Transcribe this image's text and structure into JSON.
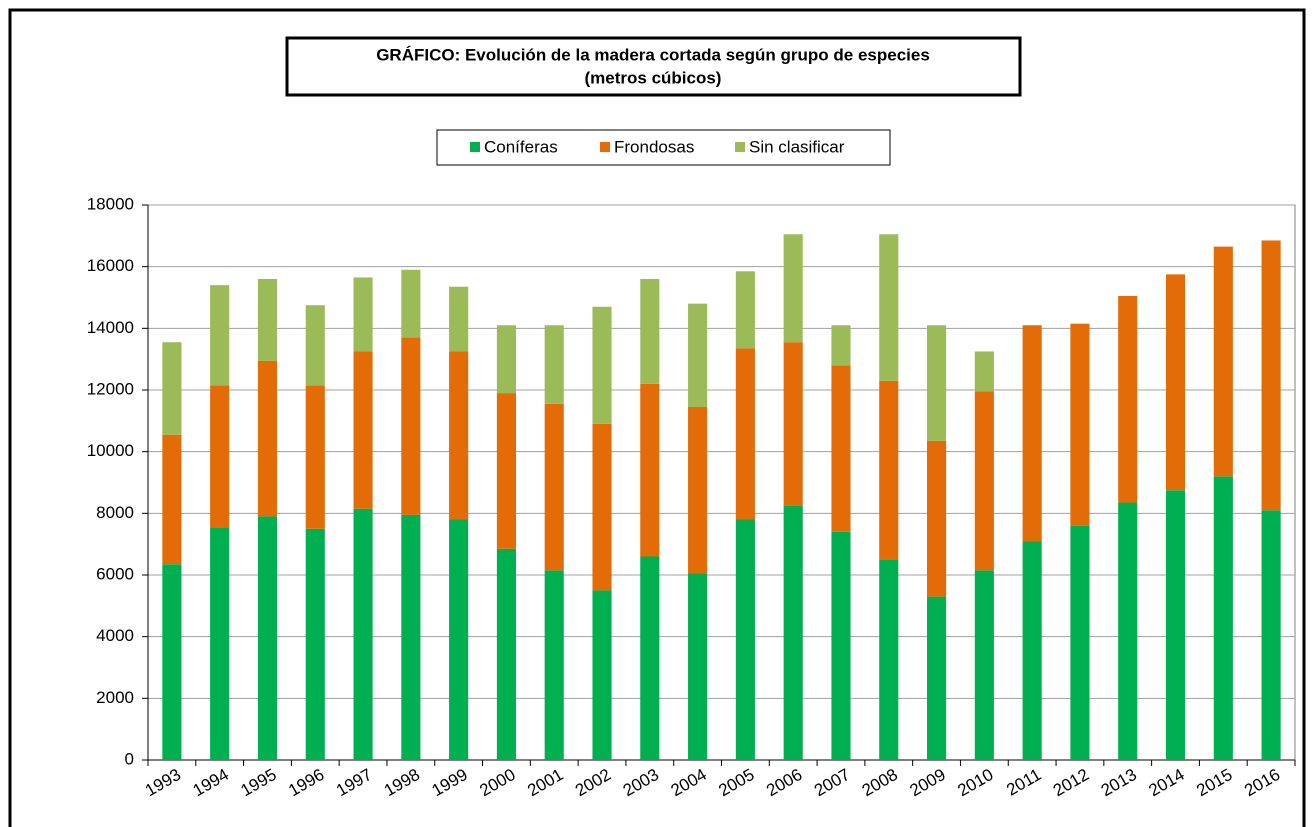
{
  "chart_data": {
    "type": "stacked_bar",
    "title": "GRÁFICO: Evolución de la  madera cortada según grupo de especies",
    "subtitle": "(metros cúbicos)",
    "categories": [
      "1993",
      "1994",
      "1995",
      "1996",
      "1997",
      "1998",
      "1999",
      "2000",
      "2001",
      "2002",
      "2003",
      "2004",
      "2005",
      "2006",
      "2007",
      "2008",
      "2009",
      "2010",
      "2011",
      "2012",
      "2013",
      "2014",
      "2015",
      "2016"
    ],
    "series": [
      {
        "name": "Coníferas",
        "color": "#00b050",
        "values": [
          6350,
          7550,
          7900,
          7500,
          8150,
          7950,
          7800,
          6850,
          6150,
          5500,
          6600,
          6050,
          7800,
          8250,
          7400,
          6500,
          5300,
          6150,
          7100,
          7600,
          8350,
          8750,
          9200,
          8100
        ]
      },
      {
        "name": "Frondosas",
        "color": "#e36c09",
        "values": [
          4200,
          4600,
          5050,
          4650,
          5100,
          5750,
          5450,
          5050,
          5400,
          5400,
          5600,
          5400,
          5550,
          5300,
          5400,
          5800,
          5050,
          5800,
          7000,
          6550,
          6700,
          7000,
          7450,
          8750
        ]
      },
      {
        "name": "Sin clasificar",
        "color": "#9bbb59",
        "values": [
          3000,
          3250,
          2650,
          2600,
          2400,
          2200,
          2100,
          2200,
          2550,
          3800,
          3400,
          3350,
          2500,
          3500,
          1300,
          4750,
          3750,
          1300,
          0,
          0,
          0,
          0,
          0,
          0
        ]
      }
    ],
    "ylim": [
      0,
      18000
    ],
    "yticks": [
      0,
      2000,
      4000,
      6000,
      8000,
      10000,
      12000,
      14000,
      16000,
      18000
    ],
    "grid": true,
    "legend": "top"
  }
}
